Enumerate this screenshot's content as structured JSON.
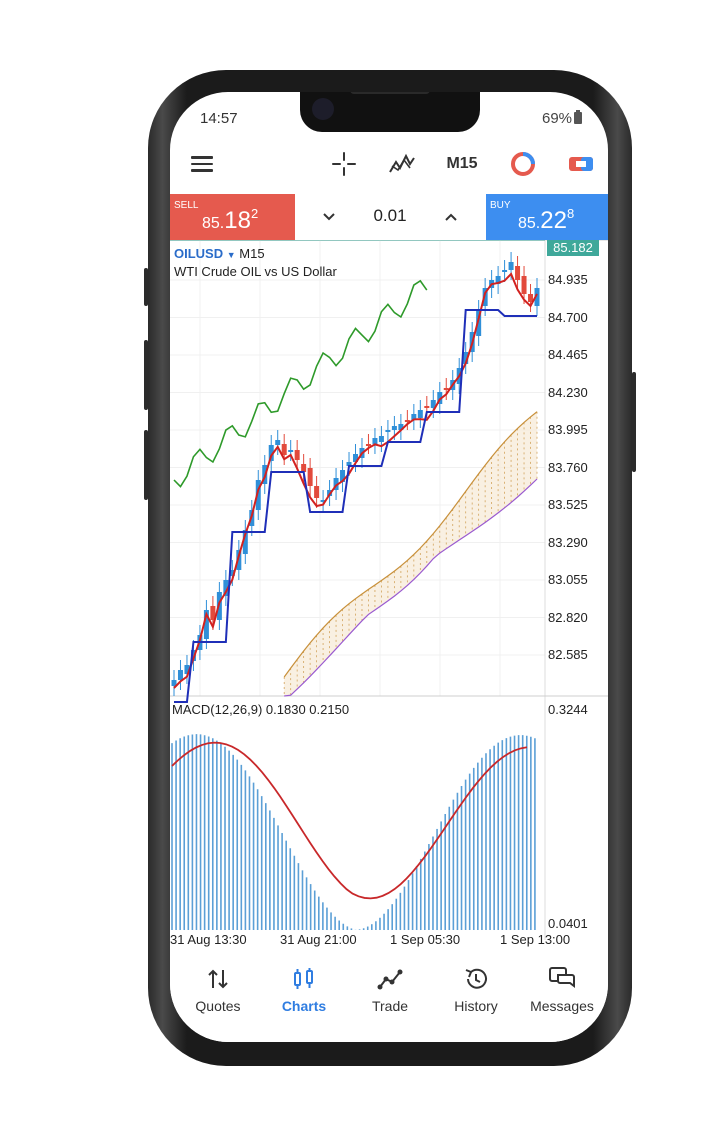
{
  "status": {
    "time": "14:57",
    "battery": "69%"
  },
  "toolbar": {
    "timeframe": "M15"
  },
  "trade": {
    "sell_label": "SELL",
    "sell_price_prefix": "85.",
    "sell_price_big": "18",
    "sell_price_sup": "2",
    "buy_label": "BUY",
    "buy_price_prefix": "85.",
    "buy_price_big": "22",
    "buy_price_sup": "8",
    "lot": "0.01"
  },
  "chart": {
    "symbol": "OILUSD",
    "timeframe": "M15",
    "description": "WTI Crude OIL vs US Dollar",
    "current_price": "85.182",
    "price_ticks": [
      "84.935",
      "84.700",
      "84.465",
      "84.230",
      "83.995",
      "83.760",
      "83.525",
      "83.290",
      "83.055",
      "82.820",
      "82.585"
    ],
    "macd_label": "MACD(12,26,9) 0.1830 0.2150",
    "macd_ticks": [
      "0.3244",
      "0.0401"
    ],
    "time_labels": [
      "31 Aug 13:30",
      "31 Aug 21:00",
      "1 Sep 05:30",
      "1 Sep 13:00"
    ],
    "colors": {
      "up": "#2f8fd8",
      "down": "#e24a3c",
      "tenkan": "#d2211f",
      "kijun": "#1f2fb8",
      "chikou": "#2e9a2a",
      "span_a": "#c8903a",
      "span_b": "#9a5ad0",
      "macd_hist": "#5b9fd6",
      "macd_signal": "#c8282a"
    }
  },
  "nav": {
    "items": [
      {
        "label": "Quotes",
        "icon": "sort-arrows-icon"
      },
      {
        "label": "Charts",
        "icon": "candles-icon"
      },
      {
        "label": "Trade",
        "icon": "trend-line-icon"
      },
      {
        "label": "History",
        "icon": "history-icon"
      },
      {
        "label": "Messages",
        "icon": "messages-icon"
      }
    ],
    "active": "Charts"
  }
}
